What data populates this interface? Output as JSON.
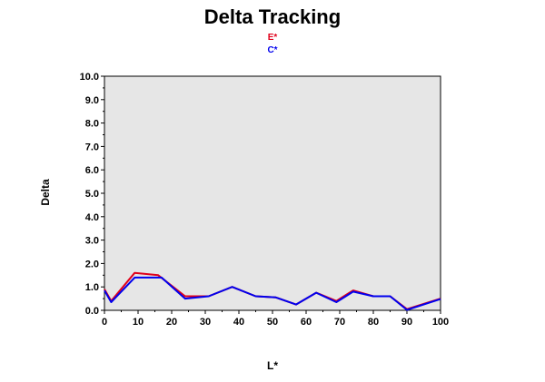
{
  "chart_data": {
    "type": "line",
    "title": "Delta Tracking",
    "xlabel": "L*",
    "ylabel": "Delta",
    "xlim": [
      0,
      100
    ],
    "ylim": [
      0,
      10
    ],
    "xticks": [
      "0",
      "10",
      "20",
      "30",
      "40",
      "50",
      "60",
      "70",
      "80",
      "90",
      "100"
    ],
    "yticks": [
      "0.0",
      "1.0",
      "2.0",
      "3.0",
      "4.0",
      "5.0",
      "6.0",
      "7.0",
      "8.0",
      "9.0",
      "10.0"
    ],
    "grid": false,
    "legend_position": "top-center",
    "series": [
      {
        "name": "E*",
        "color": "#e0001b",
        "points": [
          [
            0,
            0.9
          ],
          [
            2,
            0.4
          ],
          [
            9,
            1.6
          ],
          [
            16,
            1.5
          ],
          [
            24,
            0.6
          ],
          [
            31,
            0.6
          ],
          [
            38,
            1.0
          ],
          [
            45,
            0.6
          ],
          [
            51,
            0.55
          ],
          [
            57,
            0.25
          ],
          [
            63,
            0.75
          ],
          [
            69,
            0.4
          ],
          [
            74,
            0.85
          ],
          [
            80,
            0.6
          ],
          [
            85,
            0.6
          ],
          [
            90,
            0.05
          ],
          [
            100,
            0.5
          ]
        ]
      },
      {
        "name": "C*",
        "color": "#0000ee",
        "points": [
          [
            0,
            0.85
          ],
          [
            2,
            0.35
          ],
          [
            9,
            1.4
          ],
          [
            17,
            1.4
          ],
          [
            24,
            0.5
          ],
          [
            31,
            0.6
          ],
          [
            38,
            1.0
          ],
          [
            45,
            0.6
          ],
          [
            51,
            0.55
          ],
          [
            57,
            0.25
          ],
          [
            63,
            0.75
          ],
          [
            69,
            0.35
          ],
          [
            74,
            0.8
          ],
          [
            80,
            0.6
          ],
          [
            85,
            0.6
          ],
          [
            90,
            0.02
          ],
          [
            100,
            0.48
          ]
        ]
      }
    ]
  }
}
